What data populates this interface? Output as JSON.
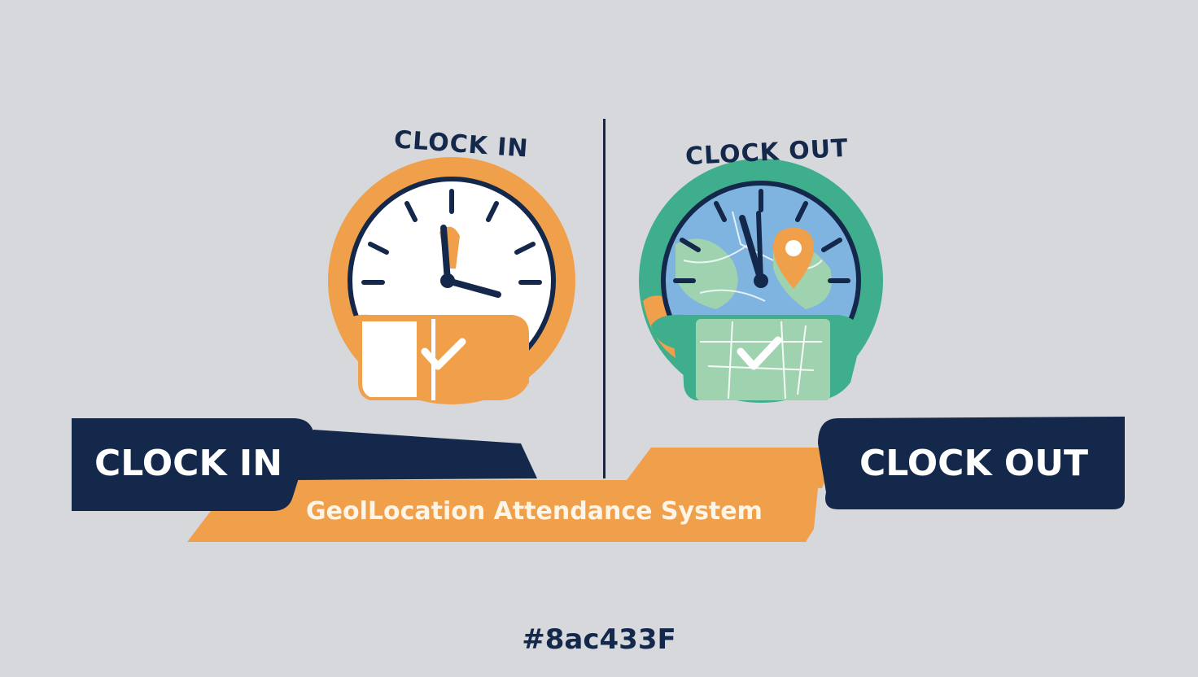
{
  "clock_in": {
    "arc_label": "CLOCK IN",
    "banner_label": "CLOCK IN"
  },
  "clock_out": {
    "arc_label": "CLOCK OUT",
    "banner_label": "CLOCK OUT"
  },
  "ribbon": {
    "label": "GeolLocation Attendance System"
  },
  "footer_code": "#8ac433F",
  "colors": {
    "navy": "#14284b",
    "orange": "#f0a04b",
    "green": "#3fae8c",
    "map_blue": "#7fb3e0",
    "map_green": "#9fd3b0",
    "background": "#d6d8db"
  },
  "icons": [
    "clock-icon",
    "map-clock-icon",
    "check-icon",
    "location-pin-icon"
  ]
}
